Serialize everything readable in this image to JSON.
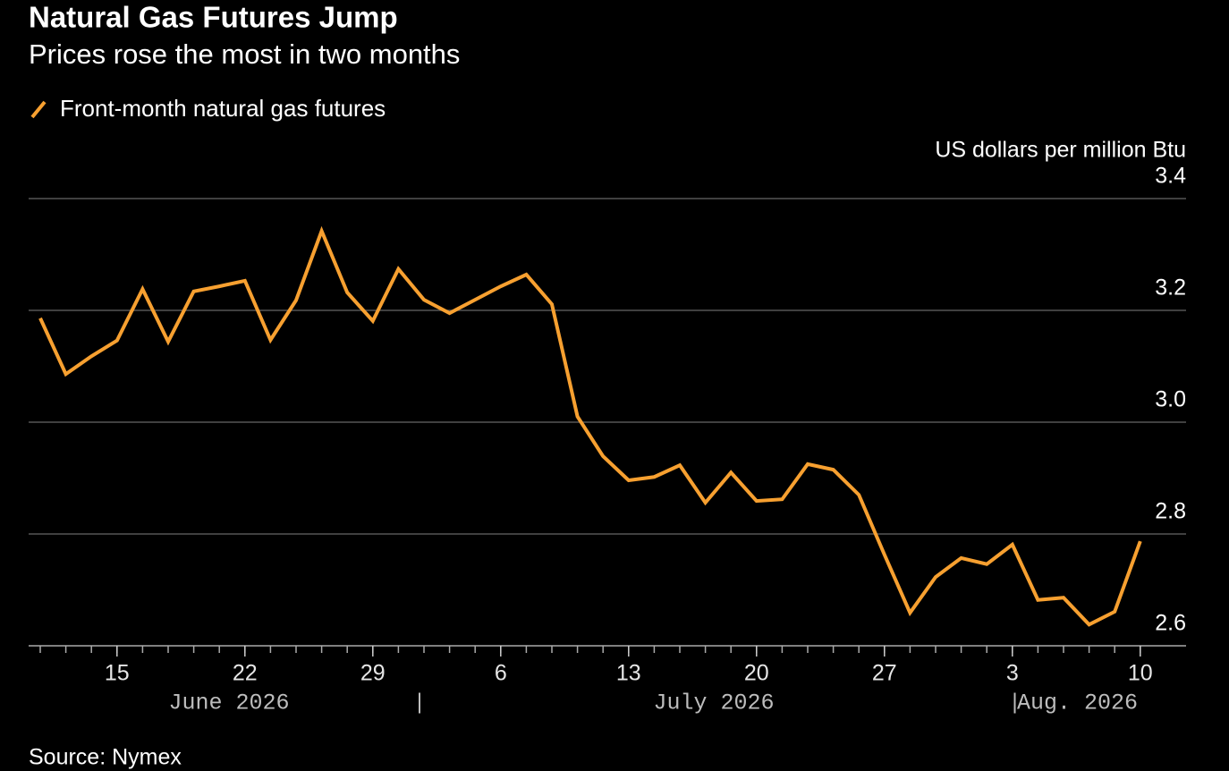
{
  "chart_data": {
    "type": "line",
    "title": "Natural Gas Futures Jump",
    "subtitle": "Prices rose the most in two months",
    "y_axis_label": "US dollars per million Btu",
    "source": "Source: Nymex",
    "x": [
      "2026-06-10",
      "2026-06-11",
      "2026-06-12",
      "2026-06-15",
      "2026-06-16",
      "2026-06-17",
      "2026-06-18",
      "2026-06-19",
      "2026-06-22",
      "2026-06-23",
      "2026-06-24",
      "2026-06-25",
      "2026-06-26",
      "2026-06-29",
      "2026-06-30",
      "2026-07-01",
      "2026-07-02",
      "2026-07-03",
      "2026-07-06",
      "2026-07-07",
      "2026-07-08",
      "2026-07-09",
      "2026-07-10",
      "2026-07-13",
      "2026-07-14",
      "2026-07-15",
      "2026-07-16",
      "2026-07-17",
      "2026-07-20",
      "2026-07-21",
      "2026-07-22",
      "2026-07-23",
      "2026-07-24",
      "2026-07-27",
      "2026-07-28",
      "2026-07-29",
      "2026-07-30",
      "2026-07-31",
      "2026-08-03",
      "2026-08-04",
      "2026-08-05",
      "2026-08-06",
      "2026-08-07",
      "2026-08-10"
    ],
    "series": [
      {
        "name": "Front-month natural gas futures",
        "color": "#f7a030",
        "values": [
          3.186,
          3.086,
          3.118,
          3.146,
          3.238,
          3.144,
          3.234,
          3.243,
          3.253,
          3.147,
          3.218,
          3.342,
          3.232,
          3.181,
          3.274,
          3.219,
          3.195,
          3.219,
          3.243,
          3.264,
          3.211,
          3.01,
          2.939,
          2.896,
          2.902,
          2.923,
          2.856,
          2.91,
          2.859,
          2.862,
          2.925,
          2.915,
          2.87,
          2.763,
          2.659,
          2.723,
          2.757,
          2.746,
          2.781,
          2.682,
          2.686,
          2.638,
          2.661,
          2.787
        ]
      }
    ],
    "xticks": [
      {
        "value": "2026-06-15",
        "label": "15"
      },
      {
        "value": "2026-06-22",
        "label": "22"
      },
      {
        "value": "2026-06-29",
        "label": "29"
      },
      {
        "value": "2026-07-06",
        "label": "6"
      },
      {
        "value": "2026-07-13",
        "label": "13"
      },
      {
        "value": "2026-07-20",
        "label": "20"
      },
      {
        "value": "2026-07-27",
        "label": "27"
      },
      {
        "value": "2026-08-03",
        "label": "3"
      },
      {
        "value": "2026-08-10",
        "label": "10"
      }
    ],
    "x_group_labels": [
      "June 2026",
      "July 2026",
      "Aug. 2026"
    ],
    "ylim": [
      2.6,
      3.4
    ],
    "yticks": [
      {
        "value": 2.6,
        "label": "2.6"
      },
      {
        "value": 2.8,
        "label": "2.8"
      },
      {
        "value": 3.0,
        "label": "3.0"
      },
      {
        "value": 3.2,
        "label": "3.2"
      },
      {
        "value": 3.4,
        "label": "3.4"
      }
    ],
    "grid": true
  }
}
